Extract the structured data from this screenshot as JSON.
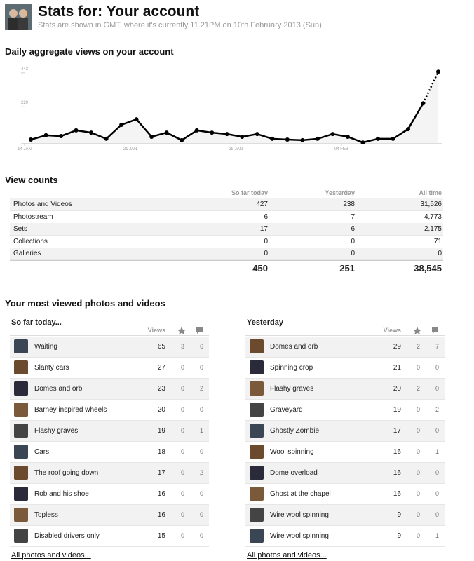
{
  "header": {
    "title": "Stats for: Your account",
    "subtitle": "Stats are shown in GMT, where it's currently 11.21PM on 10th February 2013 (Sun)"
  },
  "chart_data": {
    "type": "line",
    "title": "Daily aggregate views on your account",
    "x": [
      "14 JAN",
      null,
      null,
      null,
      null,
      null,
      null,
      "21 JAN",
      null,
      null,
      null,
      null,
      null,
      null,
      "28 JAN",
      null,
      null,
      null,
      null,
      null,
      null,
      "04 FEB",
      null,
      null,
      null,
      null,
      null,
      null
    ],
    "series": [
      {
        "color": "#000000",
        "values": [
          22,
          49,
          44,
          80,
          66,
          27,
          115,
          150,
          40,
          66,
          18,
          80,
          66,
          57,
          40,
          57,
          27,
          22,
          18,
          27,
          57,
          40,
          4,
          27,
          27,
          88,
          251,
          450
        ]
      }
    ],
    "ylim": [
      0,
      460
    ],
    "yticks": [
      229,
      443
    ],
    "dashed_last_segment": true
  },
  "view_counts": {
    "title": "View counts",
    "columns": [
      "So far today",
      "Yesterday",
      "All time"
    ],
    "rows": [
      {
        "label": "Photos and Videos",
        "values": [
          "427",
          "238",
          "31,526"
        ]
      },
      {
        "label": "Photostream",
        "values": [
          "6",
          "7",
          "4,773"
        ]
      },
      {
        "label": "Sets",
        "values": [
          "17",
          "6",
          "2,175"
        ]
      },
      {
        "label": "Collections",
        "values": [
          "0",
          "0",
          "71"
        ]
      },
      {
        "label": "Galleries",
        "values": [
          "0",
          "0",
          "0"
        ]
      }
    ],
    "totals": [
      "450",
      "251",
      "38,545"
    ]
  },
  "most_viewed": {
    "title": "Your most viewed photos and videos",
    "lists": [
      {
        "heading": "So far today...",
        "views_header": "Views",
        "rows": [
          [
            "Waiting",
            "65",
            "3",
            "6"
          ],
          [
            "Slanty cars",
            "27",
            "0",
            "0"
          ],
          [
            "Domes and orb",
            "23",
            "0",
            "2"
          ],
          [
            "Barney inspired wheels",
            "20",
            "0",
            "0"
          ],
          [
            "Flashy graves",
            "19",
            "0",
            "1"
          ],
          [
            "Cars",
            "18",
            "0",
            "0"
          ],
          [
            "The roof going down",
            "17",
            "0",
            "2"
          ],
          [
            "Rob and his shoe",
            "16",
            "0",
            "0"
          ],
          [
            "Topless",
            "16",
            "0",
            "0"
          ],
          [
            "Disabled drivers only",
            "15",
            "0",
            "0"
          ]
        ],
        "link": "All photos and videos..."
      },
      {
        "heading": "Yesterday",
        "views_header": "Views",
        "rows": [
          [
            "Domes and orb",
            "29",
            "2",
            "7"
          ],
          [
            "Spinning crop",
            "21",
            "0",
            "0"
          ],
          [
            "Flashy graves",
            "20",
            "2",
            "0"
          ],
          [
            "Graveyard",
            "19",
            "0",
            "2"
          ],
          [
            "Ghostly Zombie",
            "17",
            "0",
            "0"
          ],
          [
            "Wool spinning",
            "16",
            "0",
            "1"
          ],
          [
            "Dome overload",
            "16",
            "0",
            "0"
          ],
          [
            "Ghost at the chapel",
            "16",
            "0",
            "0"
          ],
          [
            "Wire wool spinning",
            "9",
            "0",
            "0"
          ],
          [
            "Wire wool spinning",
            "9",
            "0",
            "1"
          ]
        ],
        "link": "All photos and videos..."
      }
    ]
  }
}
